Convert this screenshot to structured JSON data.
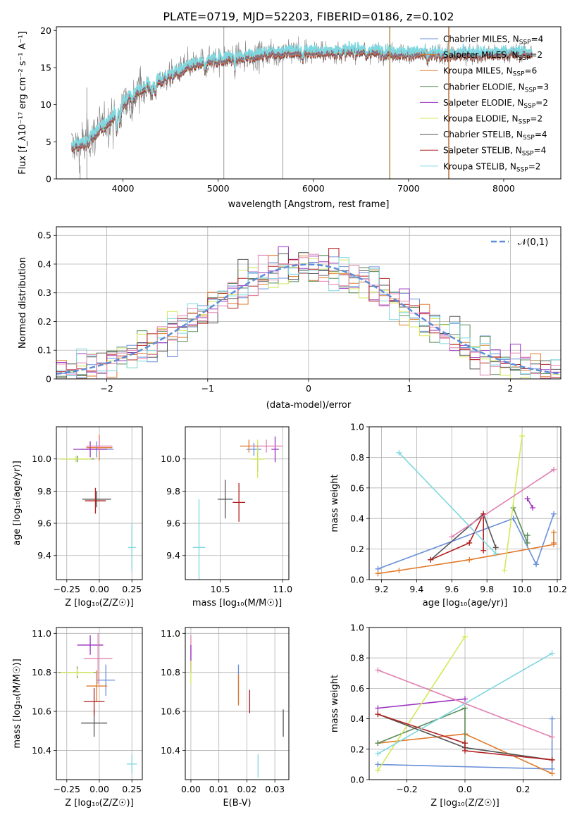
{
  "figure": {
    "title": "PLATE=0719, MJD=52203, FIBERID=0186, z=0.102"
  },
  "chart_data": [
    {
      "id": "spectrum",
      "type": "line",
      "xlabel": "wavelength [Angstrom, rest frame]",
      "ylabel": "Flux [f_λ10⁻¹⁷ erg cm⁻² s⁻¹ A⁻¹]",
      "xlim": [
        3300,
        8600
      ],
      "ylim": [
        0,
        20.5
      ],
      "xticks": [
        4000,
        5000,
        6000,
        7000,
        8000
      ],
      "yticks": [
        0,
        5,
        10,
        15,
        20
      ],
      "grid": false,
      "legend_position": "right",
      "continuum": {
        "x": [
          3470,
          3600,
          3700,
          3800,
          3900,
          4000,
          4100,
          4300,
          4500,
          4700,
          4900,
          5100,
          5300,
          5500,
          5700,
          5900,
          6100,
          6300,
          6500,
          6700,
          6900,
          7100,
          7300,
          7500,
          7700,
          7900,
          8100,
          8300
        ],
        "y": [
          4.3,
          4.8,
          6.0,
          7.2,
          8.5,
          10.2,
          11.3,
          12.8,
          13.9,
          15.2,
          15.9,
          16.3,
          16.6,
          16.9,
          17.1,
          17.2,
          17.1,
          17.2,
          17.3,
          17.1,
          17.0,
          16.9,
          16.8,
          16.8,
          16.9,
          16.9,
          17.0,
          17.0
        ]
      },
      "series": [
        {
          "name": "Chabrier MILES, N_SSP=4",
          "color": "#6a8fd8"
        },
        {
          "name": "Salpeter MILES, N_SSP=2",
          "color": "#e07a2b"
        },
        {
          "name": "Kroupa MILES, N_SSP=6",
          "color": "#e07a2b"
        },
        {
          "name": "Chabrier ELODIE, N_SSP=3",
          "color": "#5a8a5a"
        },
        {
          "name": "Salpeter ELODIE, N_SSP=2",
          "color": "#9b30c0"
        },
        {
          "name": "Kroupa ELODIE, N_SSP=2",
          "color": "#d4e85a"
        },
        {
          "name": "Chabrier STELIB, N_SSP=4",
          "color": "#555555"
        },
        {
          "name": "Salpeter STELIB, N_SSP=4",
          "color": "#b22020"
        },
        {
          "name": "Kroupa STELIB, N_SSP=2",
          "color": "#7fd8e0"
        }
      ]
    },
    {
      "id": "residuals",
      "type": "line",
      "xlabel": "(data-model)/error",
      "ylabel": "Normed distribution",
      "xlim": [
        -2.5,
        2.5
      ],
      "ylim": [
        0,
        0.53
      ],
      "xticks": [
        -2,
        -1,
        0,
        1,
        2
      ],
      "yticks": [
        0.0,
        0.1,
        0.2,
        0.3,
        0.4,
        0.5
      ],
      "grid": true,
      "legend_position": "top-right",
      "series": [
        {
          "name": "𝒩(0,1)",
          "color": "#5b8cd6",
          "style": "dashed"
        }
      ],
      "histogram_colors": [
        "#6a8fd8",
        "#e07a2b",
        "#5a8a5a",
        "#9b30c0",
        "#d4e85a",
        "#555555",
        "#b22020",
        "#7fd8e0",
        "#e080b0"
      ]
    },
    {
      "id": "age-vs-z",
      "type": "scatter",
      "xlabel": "Z [log₁₀(Z/Z☉)]",
      "ylabel": "age  [log₁₀(age/yr)]",
      "xlim": [
        -0.33,
        0.33
      ],
      "ylim": [
        9.25,
        10.2
      ],
      "xticks": [
        "-0.25",
        "0.00",
        "0.25"
      ],
      "yticks": [
        "9.4",
        "9.6",
        "9.8",
        "10.0"
      ],
      "grid": true,
      "points": [
        {
          "x": -0.02,
          "y": 10.06,
          "xerr": 0.13,
          "yerr": 0.05,
          "color": "#6a8fd8"
        },
        {
          "x": 0.0,
          "y": 10.07,
          "xerr": 0.1,
          "yerr": 0.08,
          "color": "#e07a2b"
        },
        {
          "x": -0.17,
          "y": 10.0,
          "xerr": 0.13,
          "yerr": 0.02,
          "color": "#5a8a5a"
        },
        {
          "x": -0.07,
          "y": 10.06,
          "xerr": 0.13,
          "yerr": 0.05,
          "color": "#9b30c0"
        },
        {
          "x": -0.18,
          "y": 10.0,
          "xerr": 0.12,
          "yerr": 0.02,
          "color": "#d4e85a"
        },
        {
          "x": -0.02,
          "y": 9.75,
          "xerr": 0.11,
          "yerr": 0.05,
          "color": "#555555"
        },
        {
          "x": -0.03,
          "y": 9.74,
          "xerr": 0.08,
          "yerr": 0.08,
          "color": "#b22020"
        },
        {
          "x": 0.25,
          "y": 9.45,
          "xerr": 0.03,
          "yerr": 0.15,
          "color": "#7fd8e0"
        },
        {
          "x": 0.0,
          "y": 10.08,
          "xerr": 0.1,
          "yerr": 0.05,
          "color": "#e080b0"
        }
      ]
    },
    {
      "id": "age-vs-mass",
      "type": "scatter",
      "xlabel": "mass [log₁₀(M/M☉)]",
      "ylabel": "",
      "xlim": [
        10.22,
        11.05
      ],
      "ylim": [
        9.25,
        10.2
      ],
      "xticks": [
        "10.5",
        "11.0"
      ],
      "yticks": [
        "9.4",
        "9.6",
        "9.8",
        "10.0"
      ],
      "grid": true,
      "points": [
        {
          "x": 10.77,
          "y": 10.06,
          "xerr": 0.06,
          "yerr": 0.04,
          "color": "#6a8fd8"
        },
        {
          "x": 10.73,
          "y": 10.08,
          "xerr": 0.07,
          "yerr": 0.04,
          "color": "#e07a2b"
        },
        {
          "x": 10.8,
          "y": 10.0,
          "xerr": 0.05,
          "yerr": 0.08,
          "color": "#5a8a5a"
        },
        {
          "x": 10.94,
          "y": 10.06,
          "xerr": 0.03,
          "yerr": 0.08,
          "color": "#9b30c0"
        },
        {
          "x": 10.8,
          "y": 10.0,
          "xerr": 0.06,
          "yerr": 0.12,
          "color": "#d4e85a"
        },
        {
          "x": 10.54,
          "y": 9.75,
          "xerr": 0.06,
          "yerr": 0.12,
          "color": "#555555"
        },
        {
          "x": 10.65,
          "y": 9.73,
          "xerr": 0.05,
          "yerr": 0.12,
          "color": "#b22020"
        },
        {
          "x": 10.33,
          "y": 9.45,
          "xerr": 0.05,
          "yerr": 0.3,
          "color": "#7fd8e0"
        },
        {
          "x": 10.87,
          "y": 10.08,
          "xerr": 0.13,
          "yerr": 0.04,
          "color": "#e080b0"
        }
      ]
    },
    {
      "id": "weight-vs-age",
      "type": "line",
      "xlabel": "age  [log₁₀(age/yr)]",
      "ylabel": "mass weight",
      "xlim": [
        9.13,
        10.22
      ],
      "ylim": [
        0.0,
        1.0
      ],
      "xticks": [
        "9.2",
        "9.4",
        "9.6",
        "9.8",
        "10.0",
        "10.2"
      ],
      "yticks": [
        "0.0",
        "0.2",
        "0.4",
        "0.6",
        "0.8",
        "1.0"
      ],
      "grid": true,
      "series": [
        {
          "color": "#6a8fd8",
          "x": [
            9.18,
            9.95,
            10.08,
            10.18
          ],
          "y": [
            0.07,
            0.4,
            0.1,
            0.43
          ]
        },
        {
          "color": "#e07a2b",
          "x": [
            9.18,
            9.3,
            9.7,
            10.18,
            10.18,
            10.18
          ],
          "y": [
            0.04,
            0.06,
            0.13,
            0.23,
            0.24,
            0.31
          ]
        },
        {
          "color": "#5a8a5a",
          "x": [
            9.95,
            10.03,
            10.03
          ],
          "y": [
            0.47,
            0.24,
            0.29
          ]
        },
        {
          "color": "#9b30c0",
          "x": [
            10.03,
            10.06
          ],
          "y": [
            0.53,
            0.47
          ]
        },
        {
          "color": "#d4e85a",
          "x": [
            9.9,
            10.0
          ],
          "y": [
            0.06,
            0.94
          ]
        },
        {
          "color": "#555555",
          "x": [
            9.48,
            9.78,
            9.85
          ],
          "y": [
            0.13,
            0.43,
            0.21
          ]
        },
        {
          "color": "#b22020",
          "x": [
            9.48,
            9.7,
            9.78,
            9.78
          ],
          "y": [
            0.13,
            0.24,
            0.43,
            0.19
          ]
        },
        {
          "color": "#7fd8e0",
          "x": [
            9.3,
            9.85
          ],
          "y": [
            0.83,
            0.17
          ]
        },
        {
          "color": "#e080b0",
          "x": [
            9.6,
            10.18
          ],
          "y": [
            0.28,
            0.72
          ]
        }
      ]
    },
    {
      "id": "mass-vs-z",
      "type": "scatter",
      "xlabel": "Z [log₁₀(Z/Z☉)]",
      "ylabel": "mass [log₁₀(M/M☉)]",
      "xlim": [
        -0.33,
        0.33
      ],
      "ylim": [
        10.25,
        11.03
      ],
      "xticks": [
        "-0.25",
        "0.00",
        "0.25"
      ],
      "yticks": [
        "10.4",
        "10.6",
        "10.8",
        "11.0"
      ],
      "grid": true,
      "points": [
        {
          "x": 0.05,
          "y": 10.76,
          "xerr": 0.07,
          "yerr": 0.08,
          "color": "#6a8fd8"
        },
        {
          "x": -0.02,
          "y": 10.73,
          "xerr": 0.08,
          "yerr": 0.08,
          "color": "#e07a2b"
        },
        {
          "x": -0.17,
          "y": 10.8,
          "xerr": 0.14,
          "yerr": 0.03,
          "color": "#5a8a5a"
        },
        {
          "x": -0.07,
          "y": 10.94,
          "xerr": 0.1,
          "yerr": 0.05,
          "color": "#9b30c0"
        },
        {
          "x": -0.17,
          "y": 10.8,
          "xerr": 0.13,
          "yerr": 0.02,
          "color": "#d4e85a"
        },
        {
          "x": -0.04,
          "y": 10.54,
          "xerr": 0.1,
          "yerr": 0.07,
          "color": "#555555"
        },
        {
          "x": -0.04,
          "y": 10.65,
          "xerr": 0.08,
          "yerr": 0.07,
          "color": "#b22020"
        },
        {
          "x": 0.25,
          "y": 10.33,
          "xerr": 0.04,
          "yerr": 0.05,
          "color": "#7fd8e0"
        },
        {
          "x": -0.01,
          "y": 10.87,
          "xerr": 0.11,
          "yerr": 0.13,
          "color": "#e080b0"
        }
      ]
    },
    {
      "id": "mass-vs-ebv",
      "type": "scatter",
      "xlabel": "E(B-V)",
      "ylabel": "",
      "xlim": [
        -0.002,
        0.035
      ],
      "ylim": [
        10.25,
        11.03
      ],
      "xticks": [
        "0.00",
        "0.01",
        "0.02",
        "0.03"
      ],
      "yticks": [
        "10.4",
        "10.6",
        "10.8",
        "11.0"
      ],
      "grid": true,
      "points": [
        {
          "x": 0.0,
          "y": 10.9,
          "yerr": 0.09,
          "color": "#e080b0"
        },
        {
          "x": 0.0,
          "y": 10.87,
          "yerr": 0.07,
          "color": "#9b30c0"
        },
        {
          "x": 0.0,
          "y": 10.8,
          "yerr": 0.06,
          "color": "#d4e85a"
        },
        {
          "x": 0.017,
          "y": 10.74,
          "yerr": 0.1,
          "color": "#6a8fd8"
        },
        {
          "x": 0.017,
          "y": 10.71,
          "yerr": 0.08,
          "color": "#e07a2b"
        },
        {
          "x": 0.021,
          "y": 10.65,
          "yerr": 0.06,
          "color": "#b22020"
        },
        {
          "x": 0.024,
          "y": 10.32,
          "yerr": 0.06,
          "color": "#7fd8e0"
        },
        {
          "x": 0.033,
          "y": 10.54,
          "yerr": 0.07,
          "color": "#555555"
        }
      ]
    },
    {
      "id": "weight-vs-z",
      "type": "line",
      "xlabel": "Z [log₁₀(Z/Z☉)]",
      "ylabel": "mass weight",
      "xlim": [
        -0.33,
        0.33
      ],
      "ylim": [
        0.0,
        1.0
      ],
      "xticks": [
        "-0.2",
        "0.0",
        "0.2"
      ],
      "yticks": [
        "0.0",
        "0.2",
        "0.4",
        "0.6",
        "0.8",
        "1.0"
      ],
      "grid": true,
      "series": [
        {
          "color": "#6a8fd8",
          "x": [
            -0.3,
            0.3,
            0.3
          ],
          "y": [
            0.1,
            0.07,
            0.4
          ]
        },
        {
          "color": "#e07a2b",
          "x": [
            -0.3,
            0.0,
            0.3
          ],
          "y": [
            0.24,
            0.3,
            0.04
          ]
        },
        {
          "color": "#5a8a5a",
          "x": [
            -0.3,
            0.0,
            0.0
          ],
          "y": [
            0.24,
            0.47,
            0.24
          ]
        },
        {
          "color": "#9b30c0",
          "x": [
            -0.3,
            0.0
          ],
          "y": [
            0.47,
            0.53
          ]
        },
        {
          "color": "#d4e85a",
          "x": [
            -0.3,
            0.0
          ],
          "y": [
            0.06,
            0.94
          ]
        },
        {
          "color": "#555555",
          "x": [
            -0.3,
            0.0,
            0.3
          ],
          "y": [
            0.43,
            0.21,
            0.13
          ]
        },
        {
          "color": "#b22020",
          "x": [
            -0.3,
            0.0,
            0.0,
            0.3
          ],
          "y": [
            0.43,
            0.24,
            0.19,
            0.13
          ]
        },
        {
          "color": "#7fd8e0",
          "x": [
            -0.3,
            0.3
          ],
          "y": [
            0.17,
            0.83
          ]
        },
        {
          "color": "#e080b0",
          "x": [
            -0.3,
            0.3
          ],
          "y": [
            0.72,
            0.28
          ]
        }
      ]
    }
  ]
}
